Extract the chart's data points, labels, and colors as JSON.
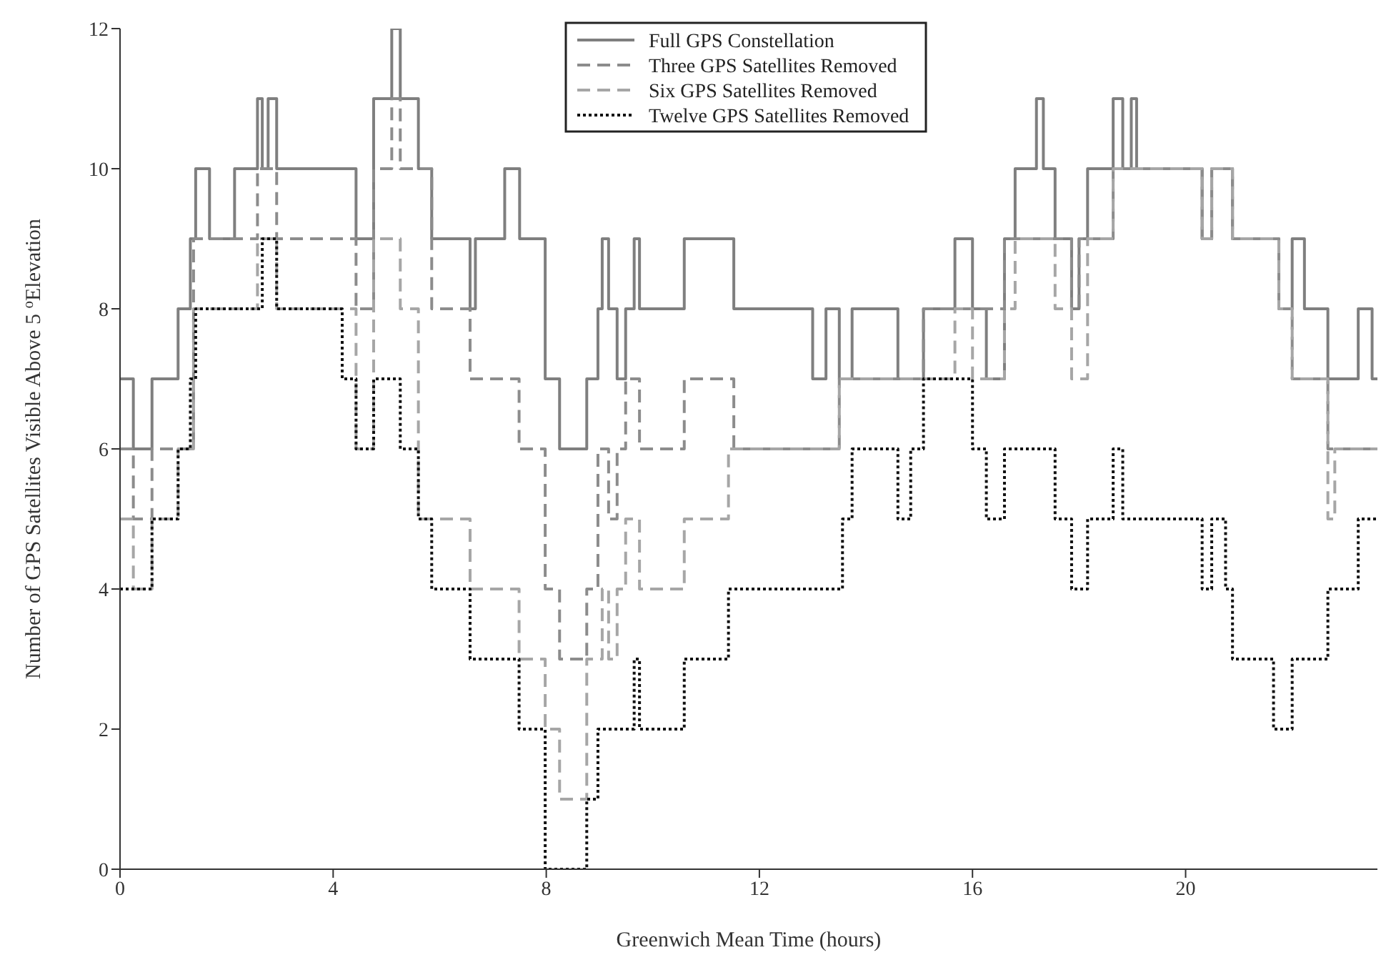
{
  "chart_data": {
    "type": "step",
    "xlabel": "Greenwich Mean Time (hours)",
    "ylabel": "Number of GPS Satellites Visible Above 5 $^{o}$Elevation",
    "xlim": [
      0,
      23.6
    ],
    "xticks": [
      0,
      4,
      8,
      12,
      16,
      20
    ],
    "ylim": [
      0,
      12
    ],
    "yticks": [
      0,
      2,
      4,
      6,
      8,
      10,
      12
    ],
    "legend": "top",
    "marker": "none",
    "series": [
      {
        "name": "Full GPS Constellation",
        "color": "#7f7f7f",
        "line_style": "solid",
        "x": [
          0,
          0.25,
          0.6,
          1.09,
          1.32,
          1.42,
          1.68,
          2.15,
          2.58,
          2.67,
          2.78,
          2.94,
          4.43,
          4.76,
          5.1,
          5.26,
          5.6,
          5.85,
          6.57,
          6.67,
          7.22,
          7.5,
          7.98,
          8.25,
          8.76,
          8.97,
          9.05,
          9.17,
          9.33,
          9.49,
          9.65,
          9.75,
          10.59,
          11.52,
          13.0,
          13.25,
          13.5,
          13.74,
          14.6,
          15.08,
          15.67,
          16.0,
          16.26,
          16.6,
          16.8,
          17.2,
          17.33,
          17.55,
          17.86,
          18.0,
          18.16,
          18.64,
          18.82,
          18.98,
          19.08,
          20.31,
          20.49,
          20.88,
          21.75,
          22.0,
          22.23,
          22.67,
          23.24,
          23.5,
          23.6
        ],
        "values": [
          7,
          6,
          7,
          8,
          9,
          10,
          9,
          10,
          11,
          10,
          11,
          10,
          9,
          11,
          12,
          11,
          10,
          9,
          8,
          9,
          10,
          9,
          7,
          6,
          7,
          8,
          9,
          8,
          7,
          8,
          9,
          8,
          9,
          8,
          7,
          8,
          7,
          8,
          7,
          8,
          9,
          8,
          7,
          9,
          10,
          11,
          10,
          9,
          8,
          9,
          10,
          11,
          10,
          11,
          10,
          9,
          10,
          9,
          8,
          9,
          8,
          7,
          8,
          7,
          7
        ]
      },
      {
        "name": "Three GPS Satellites Removed",
        "color": "#8c8c8c",
        "line_style": "dashed",
        "x": [
          0,
          0.25,
          0.6,
          1.38,
          2.58,
          2.94,
          4.43,
          4.76,
          5.1,
          5.26,
          5.85,
          6.57,
          7.49,
          7.98,
          8.25,
          8.76,
          8.97,
          9.17,
          9.33,
          9.49,
          9.75,
          10.59,
          11.52,
          13.5,
          15.08,
          16.6,
          17.86,
          18.0,
          18.64,
          20.31,
          20.49,
          20.88,
          21.75,
          22.0,
          22.67,
          23.6
        ],
        "values": [
          6,
          5,
          6,
          9,
          10,
          9,
          8,
          10,
          11,
          10,
          8,
          7,
          6,
          4,
          3,
          4,
          6,
          5,
          6,
          7,
          6,
          7,
          6,
          7,
          8,
          9,
          8,
          9,
          10,
          9,
          10,
          9,
          8,
          7,
          6,
          6
        ]
      },
      {
        "name": "Six GPS Satellites Removed",
        "color": "#a6a6a6",
        "line_style": "dashed",
        "x": [
          0,
          0.25,
          0.6,
          1.09,
          1.38,
          2.58,
          2.94,
          4.43,
          4.76,
          5.26,
          5.6,
          6.57,
          7.49,
          7.98,
          8.25,
          8.76,
          9.05,
          9.17,
          9.33,
          9.49,
          9.75,
          10.59,
          11.42,
          13.5,
          15.67,
          16.0,
          16.6,
          16.8,
          17.55,
          17.86,
          18.16,
          18.64,
          20.31,
          20.49,
          20.88,
          21.75,
          22.0,
          22.67,
          22.8,
          23.6
        ],
        "values": [
          5,
          4,
          5,
          6,
          8,
          9,
          8,
          6,
          9,
          8,
          5,
          4,
          3,
          2,
          1,
          3,
          4,
          3,
          4,
          5,
          4,
          5,
          6,
          7,
          8,
          7,
          8,
          9,
          8,
          7,
          9,
          10,
          9,
          10,
          9,
          8,
          7,
          5,
          6,
          6
        ]
      },
      {
        "name": "Twelve GPS Satellites Removed",
        "color": "#111111",
        "line_style": "dotted",
        "x": [
          0,
          0.6,
          1.09,
          1.32,
          1.42,
          2.67,
          2.94,
          4.17,
          4.43,
          4.76,
          5.26,
          5.6,
          5.85,
          6.57,
          7.49,
          7.98,
          8.76,
          8.97,
          9.65,
          9.75,
          10.59,
          11.42,
          13.56,
          13.74,
          14.6,
          14.84,
          15.08,
          16.0,
          16.26,
          16.6,
          17.55,
          17.86,
          18.16,
          18.64,
          18.82,
          20.31,
          20.49,
          20.75,
          20.88,
          21.65,
          22.0,
          22.67,
          23.24,
          23.6
        ],
        "values": [
          4,
          5,
          6,
          7,
          8,
          9,
          8,
          7,
          6,
          7,
          6,
          5,
          4,
          3,
          2,
          0,
          1,
          2,
          3,
          2,
          3,
          4,
          5,
          6,
          5,
          6,
          7,
          6,
          5,
          6,
          5,
          4,
          5,
          6,
          5,
          4,
          5,
          4,
          3,
          2,
          3,
          4,
          5,
          5
        ]
      }
    ]
  }
}
